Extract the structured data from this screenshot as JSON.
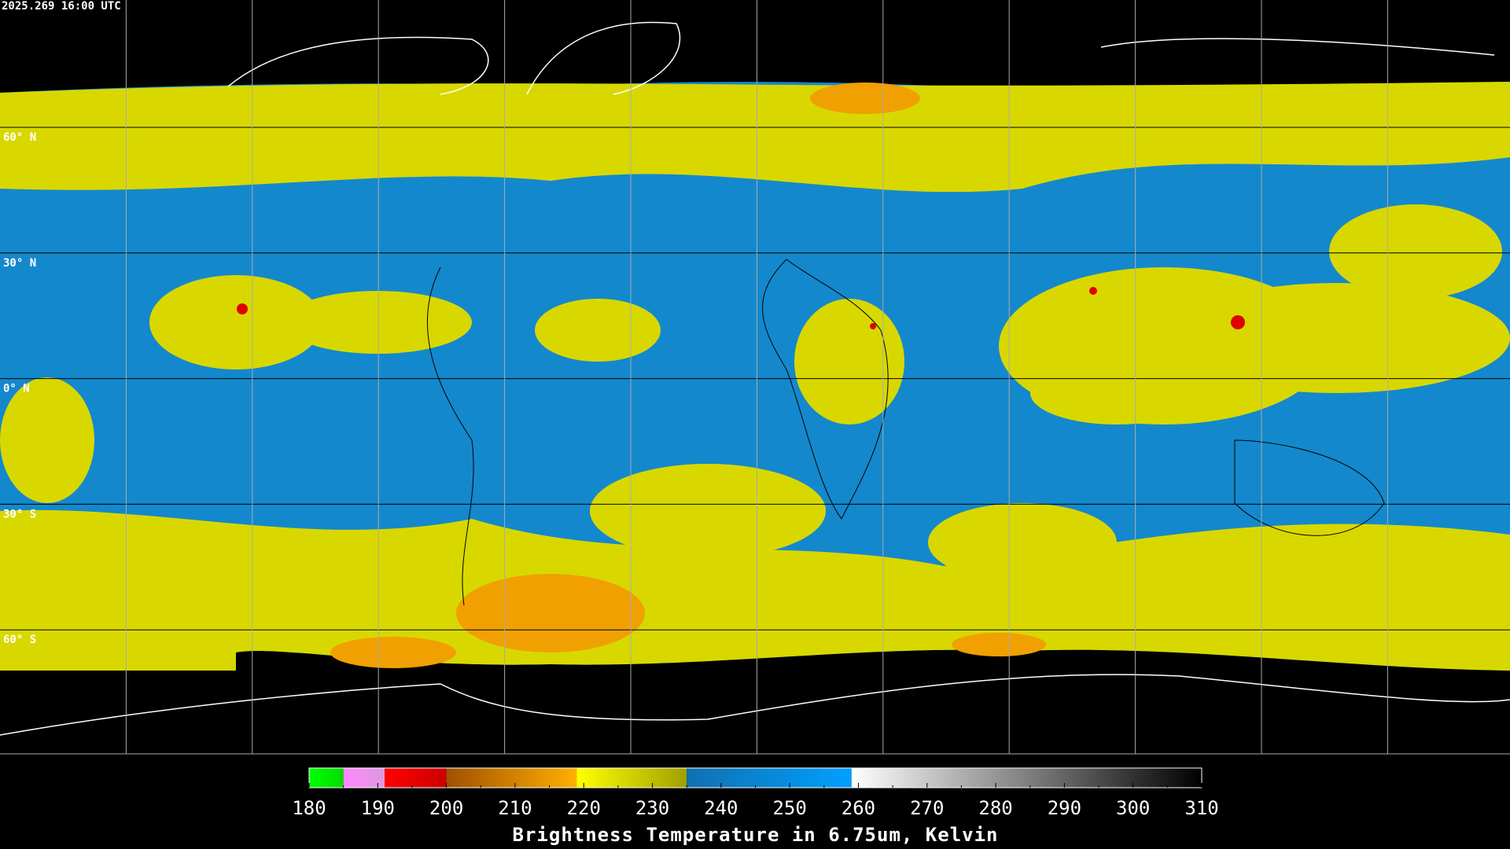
{
  "header": {
    "timestamp": "2025.269 16:00 UTC"
  },
  "map": {
    "latitude_labels": [
      "60° N",
      "30° N",
      "0° N",
      "30° S",
      "60° S"
    ]
  },
  "colorbar": {
    "range": [
      180,
      310
    ],
    "ticks": [
      180,
      190,
      200,
      210,
      220,
      230,
      240,
      250,
      260,
      270,
      280,
      290,
      300,
      310
    ],
    "label": "Brightness Temperature in 6.75um, Kelvin",
    "segments": [
      {
        "from": 180,
        "to": 185,
        "colors": [
          "#00ff00",
          "#00dd00"
        ]
      },
      {
        "from": 185,
        "to": 191,
        "colors": [
          "#ff88ff",
          "#dd99dd"
        ]
      },
      {
        "from": 191,
        "to": 200,
        "colors": [
          "#ff0000",
          "#cc0000"
        ]
      },
      {
        "from": 200,
        "to": 219,
        "colors": [
          "#a05000",
          "#ffb000"
        ]
      },
      {
        "from": 219,
        "to": 235,
        "colors": [
          "#ffff00",
          "#a0a000"
        ]
      },
      {
        "from": 235,
        "to": 259,
        "colors": [
          "#1070b0",
          "#00a0ff"
        ]
      },
      {
        "from": 259,
        "to": 310,
        "colors": [
          "#ffffff",
          "#000000"
        ]
      }
    ]
  }
}
